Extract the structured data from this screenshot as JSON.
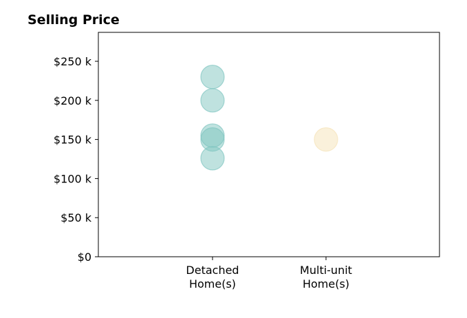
{
  "chart_data": {
    "type": "scatter",
    "title": "Selling Price",
    "xlabel": "",
    "ylabel": "",
    "categories": [
      [
        "Detached",
        "Home(s)"
      ],
      [
        "Multi-unit",
        "Home(s)"
      ]
    ],
    "yticks": [
      0,
      50000,
      100000,
      150000,
      200000,
      250000
    ],
    "ytick_labels": [
      "$0",
      "$50 k",
      "$100 k",
      "$150 k",
      "$200 k",
      "$250 k"
    ],
    "ylim": [
      0,
      287000
    ],
    "grid": false,
    "series": [
      {
        "category_index": 0,
        "color": "#7fc5c0",
        "values": [
          230000,
          200000,
          155000,
          150000,
          126000
        ]
      },
      {
        "category_index": 1,
        "color": "#f5e3b8",
        "values": [
          150000
        ]
      }
    ]
  }
}
